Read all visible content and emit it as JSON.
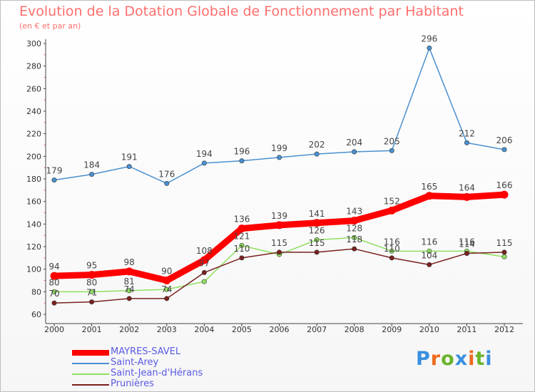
{
  "header": {
    "title": "Evolution de la Dotation Globale de Fonctionnement par Habitant",
    "subtitle": "(en € et par an)"
  },
  "logo": {
    "text": "Proxiti",
    "colors": [
      "#3a8fe0",
      "#ef6a1e",
      "#6ab52c",
      "#3a8fe0",
      "#ef6a1e",
      "#6ab52c",
      "#3a8fe0"
    ]
  },
  "chart_data": {
    "type": "line",
    "title": "Evolution de la Dotation Globale de Fonctionnement par Habitant",
    "subtitle": "(en € et par an)",
    "x": [
      "2000",
      "2001",
      "2002",
      "2003",
      "2004",
      "2005",
      "2006",
      "2007",
      "2008",
      "2009",
      "2010",
      "2011",
      "2012"
    ],
    "ylim": [
      60,
      300
    ],
    "yticks": [
      60,
      80,
      100,
      120,
      140,
      160,
      180,
      200,
      220,
      240,
      260,
      280,
      300
    ],
    "grid": false,
    "legend_position": "bottom-left",
    "series": [
      {
        "name": "MAYRES-SAVEL",
        "color": "#ff0000",
        "values": [
          94,
          95,
          98,
          90,
          108,
          136,
          139,
          141,
          143,
          152,
          165,
          164,
          166
        ],
        "labels": [
          "94",
          "95",
          "98",
          "90",
          "108",
          "136",
          "139",
          "141",
          "143",
          "152",
          "165",
          "164",
          "166"
        ]
      },
      {
        "name": "Saint-Arey",
        "color": "#4a90d0",
        "values": [
          179,
          184,
          191,
          176,
          194,
          196,
          199,
          202,
          204,
          205,
          296,
          212,
          206
        ],
        "labels": [
          "179",
          "184",
          "191",
          "176",
          "194",
          "196",
          "199",
          "202",
          "204",
          "205",
          "296",
          "212",
          "206"
        ]
      },
      {
        "name": "Saint-Jean-d'Hérans",
        "color": "#90e060",
        "values": [
          80,
          80,
          81,
          82,
          89,
          121,
          113,
          126,
          128,
          116,
          116,
          116,
          111
        ],
        "labels": [
          "80",
          "80",
          "81",
          "",
          "",
          "121",
          "",
          "126",
          "128",
          "116",
          "116",
          "116",
          ""
        ]
      },
      {
        "name": "Prunières",
        "color": "#7a2020",
        "values": [
          70,
          71,
          74,
          74,
          97,
          110,
          115,
          115,
          118,
          110,
          104,
          114,
          115
        ],
        "labels": [
          "70",
          "71",
          "74",
          "74",
          "97",
          "110",
          "115",
          "115",
          "118",
          "110",
          "104",
          "114",
          "115"
        ]
      }
    ]
  }
}
